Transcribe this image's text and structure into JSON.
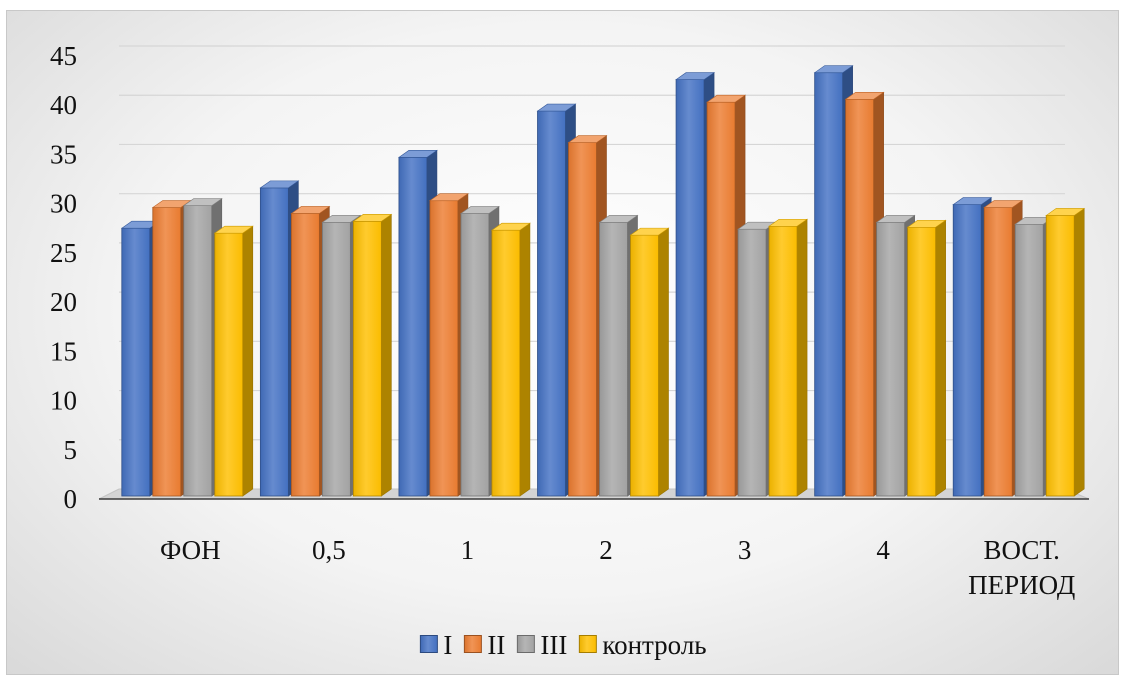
{
  "chart_data": {
    "type": "bar",
    "title": "",
    "xlabel": "",
    "ylabel": "",
    "categories": [
      [
        "ФОН"
      ],
      [
        "0,5"
      ],
      [
        "1"
      ],
      [
        "2"
      ],
      [
        "3"
      ],
      [
        "4"
      ],
      [
        "ВОСТ.",
        "ПЕРИОД"
      ]
    ],
    "series": [
      {
        "name": "I",
        "values": [
          27.2,
          31.3,
          34.4,
          39.1,
          42.3,
          43.0,
          29.6
        ]
      },
      {
        "name": "II",
        "values": [
          29.3,
          28.7,
          30.0,
          35.9,
          40.0,
          40.3,
          29.3
        ]
      },
      {
        "name": "III",
        "values": [
          29.5,
          27.8,
          28.7,
          27.8,
          27.1,
          27.8,
          27.6
        ]
      },
      {
        "name": "контроль",
        "values": [
          26.7,
          27.9,
          27.0,
          26.5,
          27.4,
          27.3,
          28.5
        ]
      }
    ],
    "ylim": [
      0,
      45
    ],
    "yticks": [
      0,
      5,
      10,
      15,
      20,
      25,
      30,
      35,
      40,
      45
    ],
    "grid": true,
    "legend": "bottom",
    "style": "3d-clustered-column",
    "colors": {
      "I": "#4472c4",
      "II": "#ed7d31",
      "III": "#a5a5a5",
      "контроль": "#ffc000"
    }
  }
}
